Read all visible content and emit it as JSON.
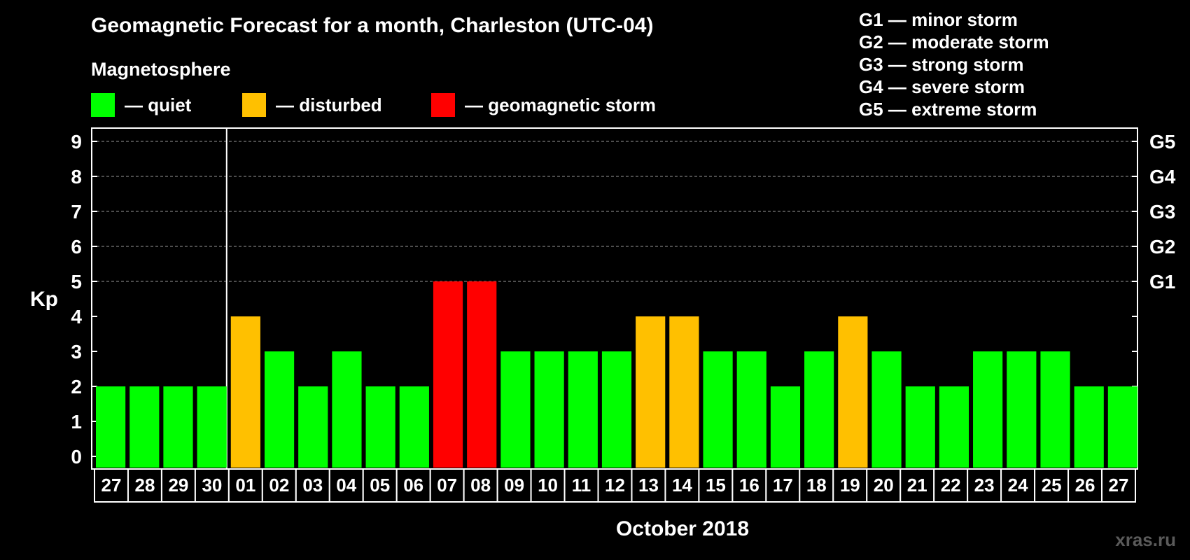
{
  "title": "Geomagnetic Forecast for a month, Charleston (UTC-04)",
  "subtitle": "Magnetosphere",
  "legend": [
    {
      "label": "— quiet",
      "color": "#00ff00"
    },
    {
      "label": "— disturbed",
      "color": "#ffc000"
    },
    {
      "label": "— geomagnetic storm",
      "color": "#ff0000"
    }
  ],
  "g_scale": [
    "G1 — minor storm",
    "G2 — moderate storm",
    "G3 — strong storm",
    "G4 — severe storm",
    "G5 — extreme storm"
  ],
  "watermark": "xras.ru",
  "chart_data": {
    "type": "bar",
    "title": "Geomagnetic Forecast for a month, Charleston (UTC-04)",
    "ylabel": "Kp",
    "xlabel": "October 2018",
    "ylim": [
      0,
      9
    ],
    "yticks": [
      0,
      1,
      2,
      3,
      4,
      5,
      6,
      7,
      8,
      9
    ],
    "right_axis_labels": [
      {
        "value": 5,
        "label": "G1"
      },
      {
        "value": 6,
        "label": "G2"
      },
      {
        "value": 7,
        "label": "G3"
      },
      {
        "value": 8,
        "label": "G4"
      },
      {
        "value": 9,
        "label": "G5"
      }
    ],
    "grid": "horizontal dashed at 5-9",
    "month_separator_after_index": 3,
    "categories": [
      "27",
      "28",
      "29",
      "30",
      "01",
      "02",
      "03",
      "04",
      "05",
      "06",
      "07",
      "08",
      "09",
      "10",
      "11",
      "12",
      "13",
      "14",
      "15",
      "16",
      "17",
      "18",
      "19",
      "20",
      "21",
      "22",
      "23",
      "24",
      "25",
      "26",
      "27"
    ],
    "values": [
      2,
      2,
      2,
      2,
      4,
      3,
      2,
      3,
      2,
      2,
      5,
      5,
      3,
      3,
      3,
      3,
      4,
      4,
      3,
      3,
      2,
      3,
      4,
      3,
      2,
      2,
      3,
      3,
      3,
      2,
      2
    ],
    "status_colors": {
      "quiet": "#00ff00",
      "disturbed": "#ffc000",
      "storm": "#ff0000"
    }
  }
}
